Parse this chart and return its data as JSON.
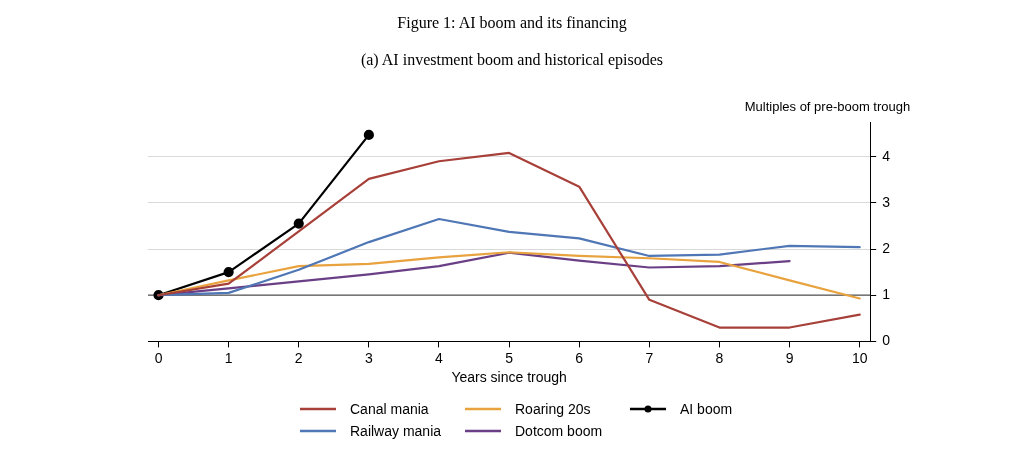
{
  "chart_data": {
    "type": "line",
    "title": "Figure 1: AI boom and its financing",
    "subtitle": "(a) AI investment boom and historical episodes",
    "xlabel": "Years since trough",
    "ylabel": "Multiples of pre-boom trough",
    "x": [
      0,
      1,
      2,
      3,
      4,
      5,
      6,
      7,
      8,
      9,
      10
    ],
    "series": [
      {
        "name": "Canal mania",
        "color": "#a8403a",
        "values": [
          1,
          1.25,
          2.38,
          3.52,
          3.9,
          4.08,
          3.35,
          0.9,
          0.3,
          0.3,
          0.58
        ]
      },
      {
        "name": "Railway mania",
        "color": "#4f76b5",
        "values": [
          1,
          1.05,
          1.55,
          2.15,
          2.65,
          2.37,
          2.23,
          1.85,
          1.88,
          2.07,
          2.04
        ]
      },
      {
        "name": "Roaring 20s",
        "color": "#e8a23e",
        "values": [
          1,
          1.32,
          1.63,
          1.68,
          1.82,
          1.93,
          1.85,
          1.8,
          1.72,
          1.32,
          0.93
        ]
      },
      {
        "name": "Dotcom boom",
        "color": "#6a3f86",
        "values": [
          1,
          1.15,
          1.3,
          1.45,
          1.63,
          1.92,
          1.75,
          1.6,
          1.63,
          1.74,
          null
        ]
      },
      {
        "name": "AI boom",
        "color": "#000000",
        "marker": "circle",
        "values": [
          1,
          1.5,
          2.55,
          4.47,
          null,
          null,
          null,
          null,
          null,
          null,
          null
        ]
      }
    ],
    "xlim": [
      -0.15,
      10.15
    ],
    "xticks": [
      0,
      1,
      2,
      3,
      4,
      5,
      6,
      7,
      8,
      9,
      10
    ],
    "ylim": [
      0,
      4.75
    ],
    "yticks": [
      0,
      1,
      2,
      3,
      4
    ],
    "ref_lines": [
      {
        "axis": "y",
        "value": 1,
        "color": "#555555"
      }
    ],
    "grid": "y",
    "legend": "bottom",
    "line_style": "solid",
    "marker": "none"
  }
}
